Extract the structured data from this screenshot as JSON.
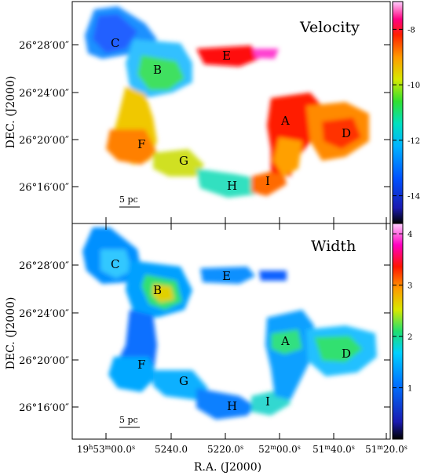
{
  "panels": [
    {
      "id": "velocity",
      "title": "Velocity",
      "colorbar": {
        "range": [
          -15,
          -7
        ],
        "tick_labels": [
          "-8",
          "-10",
          "-12",
          "-14"
        ],
        "tick_values": [
          -8,
          -10,
          -12,
          -14
        ]
      },
      "regions": [
        {
          "label": "A",
          "value": -9.5
        },
        {
          "label": "B",
          "value": -11.5
        },
        {
          "label": "C",
          "value": -12.5
        },
        {
          "label": "D",
          "value": -10.0
        },
        {
          "label": "E",
          "value": -8.8
        },
        {
          "label": "F",
          "value": -10.5
        },
        {
          "label": "G",
          "value": -11.0
        },
        {
          "label": "H",
          "value": -12.0
        },
        {
          "label": "I",
          "value": -9.8
        }
      ]
    },
    {
      "id": "width",
      "title": "Width",
      "colorbar": {
        "range": [
          0,
          4.2
        ],
        "tick_labels": [
          "4",
          "3",
          "2",
          "1"
        ],
        "tick_values": [
          4,
          3,
          2,
          1
        ]
      },
      "regions": [
        {
          "label": "A",
          "value": 2.4
        },
        {
          "label": "B",
          "value": 2.2
        },
        {
          "label": "C",
          "value": 1.8
        },
        {
          "label": "D",
          "value": 1.7
        },
        {
          "label": "E",
          "value": 1.5
        },
        {
          "label": "F",
          "value": 1.3
        },
        {
          "label": "G",
          "value": 1.6
        },
        {
          "label": "H",
          "value": 1.4
        },
        {
          "label": "I",
          "value": 1.9
        }
      ]
    }
  ],
  "y_ticks": [
    "26°28′00″",
    "26°24′00″",
    "26°20′00″",
    "26°16′00″"
  ],
  "y_label": "DEC. (J2000)",
  "x_ticks": [
    {
      "h": "19",
      "hu": "h",
      "m": "53",
      "mu": "m",
      "s": "00.0",
      "su": "s"
    },
    {
      "h": "",
      "hu": "",
      "m": "52",
      "mu": "",
      "s": "40.0",
      "su": ""
    },
    {
      "h": "",
      "hu": "",
      "m": "52",
      "mu": "",
      "s": "20.0",
      "su": "s"
    },
    {
      "h": "",
      "hu": "",
      "m": "52",
      "mu": "m",
      "s": "00.0",
      "su": "s"
    },
    {
      "h": "",
      "hu": "",
      "m": "51",
      "mu": "m",
      "s": "40.0",
      "su": "s"
    },
    {
      "h": "",
      "hu": "",
      "m": "51",
      "mu": "m",
      "s": "20.0",
      "su": "s"
    }
  ],
  "x_label": "R.A. (J2000)",
  "scale_bar": "5 pc",
  "colors": {
    "frame": "#000000",
    "background": "#ffffff"
  }
}
